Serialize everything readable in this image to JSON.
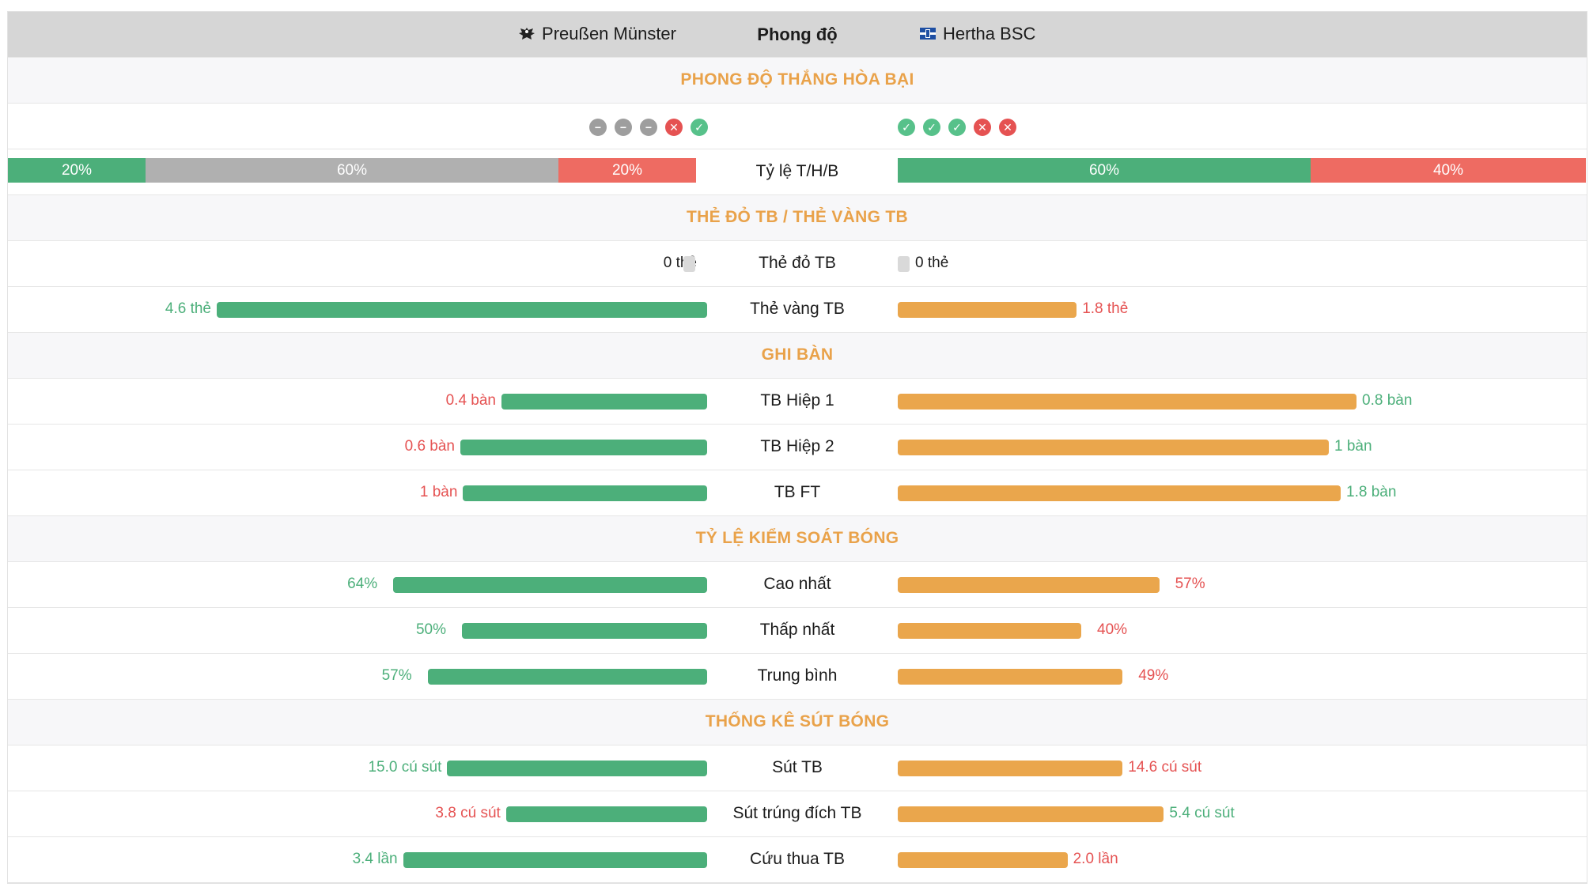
{
  "header": {
    "home_team": "Preußen Münster",
    "center_label": "Phong độ",
    "away_team": "Hertha BSC"
  },
  "colors": {
    "home_bar": "#4caf7a",
    "away_bar": "#eaa64c",
    "win": "#4caf7a",
    "draw": "#b0b0b0",
    "loss": "#ee6b62",
    "section_title": "#e9a24a"
  },
  "sections": {
    "form_title": "PHONG ĐỘ THẮNG HÒA BẠI",
    "cards_title": "THẺ ĐỎ TB / THẺ VÀNG TB",
    "goals_title": "GHI BÀN",
    "possession_title": "TỶ LỆ KIỂM SOÁT BÓNG",
    "shots_title": "THỐNG KÊ SÚT BÓNG"
  },
  "form": {
    "home": [
      "draw",
      "draw",
      "draw",
      "loss",
      "win"
    ],
    "away": [
      "win",
      "win",
      "win",
      "loss",
      "loss"
    ]
  },
  "whl": {
    "label": "Tỷ lệ T/H/B",
    "home": {
      "win": "20%",
      "draw": "60%",
      "loss": "20%",
      "win_frac": 0.2,
      "draw_frac": 0.6,
      "loss_frac": 0.2
    },
    "away": {
      "win": "60%",
      "loss": "40%",
      "win_frac": 0.6,
      "loss_frac": 0.4
    }
  },
  "cards": {
    "red": {
      "label": "Thẻ đỏ TB",
      "home": "0 thẻ",
      "away": "0 thẻ"
    },
    "yellow": {
      "label": "Thẻ vàng TB",
      "home": "4.6 thẻ",
      "away": "1.8 thẻ",
      "home_frac": 1.0,
      "away_frac": 0.39
    }
  },
  "goals": [
    {
      "label": "TB Hiệp 1",
      "home": "0.4 bàn",
      "away": "0.8 bàn",
      "home_frac": 0.5,
      "away_frac": 1.0
    },
    {
      "label": "TB Hiệp 2",
      "home": "0.6 bàn",
      "away": "1 bàn",
      "home_frac": 0.6,
      "away_frac": 1.0
    },
    {
      "label": "TB FT",
      "home": "1 bàn",
      "away": "1.8 bàn",
      "home_frac": 0.556,
      "away_frac": 1.0
    }
  ],
  "possession": [
    {
      "label": "Cao nhất",
      "home": "64%",
      "away": "57%",
      "home_frac": 0.64,
      "away_frac": 0.57
    },
    {
      "label": "Thấp nhất",
      "home": "50%",
      "away": "40%",
      "home_frac": 0.5,
      "away_frac": 0.4
    },
    {
      "label": "Trung bình",
      "home": "57%",
      "away": "49%",
      "home_frac": 0.57,
      "away_frac": 0.49
    }
  ],
  "shots": [
    {
      "label": "Sút TB",
      "home": "15.0 cú sút",
      "away": "14.6 cú sút",
      "home_frac": 0.53,
      "away_frac": 0.49
    },
    {
      "label": "Sút trúng đích TB",
      "home": "3.8 cú sút",
      "away": "5.4 cú sút",
      "home_frac": 0.41,
      "away_frac": 0.58
    },
    {
      "label": "Cứu thua TB",
      "home": "3.4 lần",
      "away": "2.0 lần",
      "home_frac": 0.62,
      "away_frac": 0.37
    }
  ]
}
